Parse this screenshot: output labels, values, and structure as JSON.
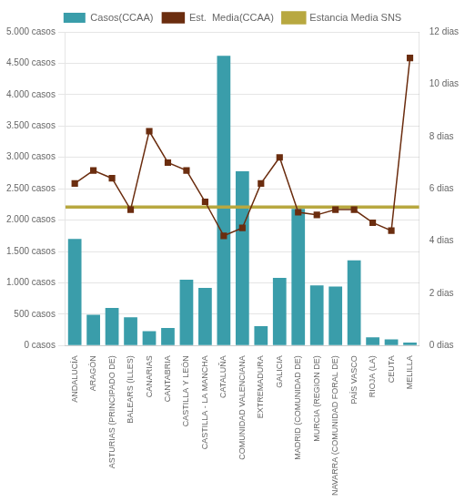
{
  "chart_data": {
    "type": "bar",
    "categories": [
      "ANDALUCÍA",
      "ARAGÓN",
      "ASTURIAS (PRINCIPADO DE)",
      "BALEARS (ILLES)",
      "CANARIAS",
      "CANTABRIA",
      "CASTILLA Y LEÓN",
      "CASTILLA - LA MANCHA",
      "CATALUÑA",
      "COMUNIDAD VALENCIANA",
      "EXTREMADURA",
      "GALICIA",
      "MADRID (COMUNIDAD DE)",
      "MURCIA (REGION DE)",
      "NAVARRA (COMUNIDAD FORAL DE)",
      "PAÍS VASCO",
      "RIOJA (LA)",
      "CEUTA",
      "MELILLA"
    ],
    "series": [
      {
        "name": "Casos(CCAA)",
        "type": "bar",
        "color": "#3a9daa",
        "values": [
          1700,
          490,
          600,
          450,
          230,
          280,
          1050,
          920,
          4620,
          2780,
          310,
          1080,
          2180,
          960,
          940,
          1360,
          130,
          100,
          50
        ]
      },
      {
        "name": "Est.  Media(CCAA)",
        "type": "line",
        "axis": "y2",
        "color": "#6b2d0f",
        "marker": "square",
        "values": [
          6.2,
          6.7,
          6.4,
          5.2,
          8.2,
          7.0,
          6.7,
          5.5,
          4.2,
          4.5,
          6.2,
          7.2,
          5.1,
          5.0,
          5.2,
          5.2,
          4.7,
          4.4,
          11.0
        ]
      },
      {
        "name": "Estancia Media SNS",
        "type": "hline",
        "axis": "y2",
        "color": "#b8a840",
        "value": 5.3
      }
    ],
    "ylim": [
      0,
      5000
    ],
    "yticks": [
      {
        "value": 0,
        "label": "0 casos"
      },
      {
        "value": 500,
        "label": "500 casos"
      },
      {
        "value": 1000,
        "label": "1.000 casos"
      },
      {
        "value": 1500,
        "label": "1.500 casos"
      },
      {
        "value": 2000,
        "label": "2.000 casos"
      },
      {
        "value": 2500,
        "label": "2.500 casos"
      },
      {
        "value": 3000,
        "label": "3.000 casos"
      },
      {
        "value": 3500,
        "label": "3.500 casos"
      },
      {
        "value": 4000,
        "label": "4.000 casos"
      },
      {
        "value": 4500,
        "label": "4.500 casos"
      },
      {
        "value": 5000,
        "label": "5.000 casos"
      }
    ],
    "y2lim": [
      0,
      12
    ],
    "y2ticks": [
      {
        "value": 0,
        "label": "0 dias"
      },
      {
        "value": 2,
        "label": "2 dias"
      },
      {
        "value": 4,
        "label": "4 dias"
      },
      {
        "value": 6,
        "label": "6 dias"
      },
      {
        "value": 8,
        "label": "8 dias"
      },
      {
        "value": 10,
        "label": "10 dias"
      },
      {
        "value": 12,
        "label": "12 dias"
      }
    ],
    "grid": true,
    "legend": "top"
  }
}
